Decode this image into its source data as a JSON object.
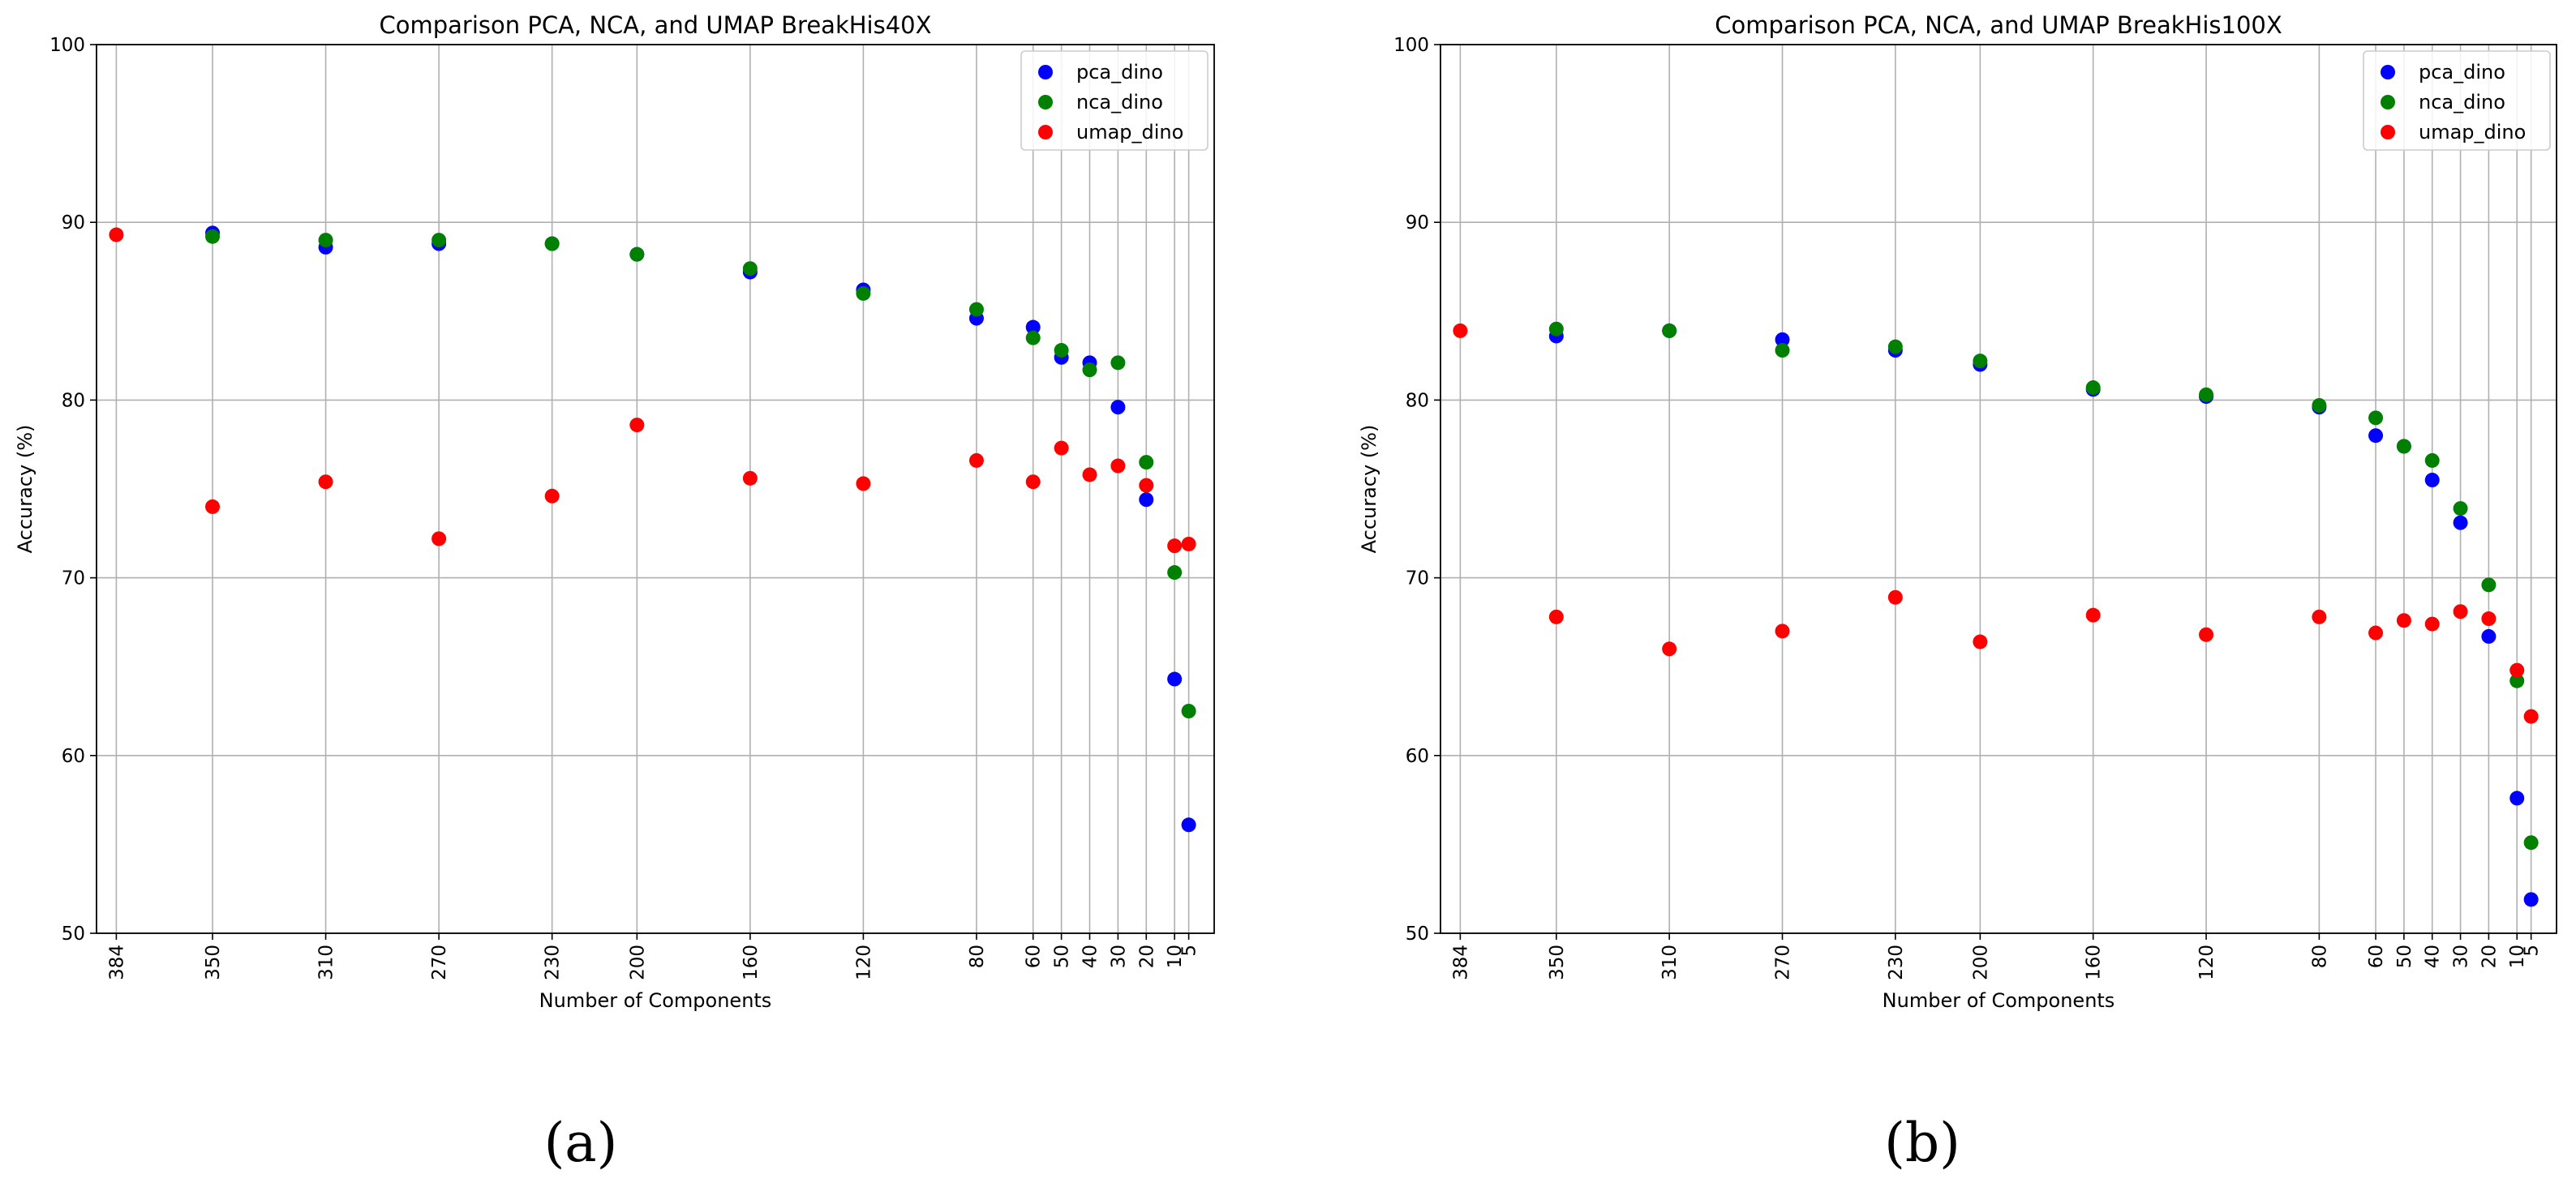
{
  "chart_data": [
    {
      "type": "scatter",
      "title": "Comparison PCA, NCA, and UMAP BreakHis40X",
      "xlabel": "Number of Components",
      "ylabel": "Accuracy (%)",
      "caption": "(a)",
      "x_order": "descending",
      "x_ticks": [
        384,
        350,
        310,
        270,
        230,
        200,
        160,
        120,
        80,
        60,
        50,
        40,
        30,
        20,
        10,
        5
      ],
      "y_ticks": [
        50,
        60,
        70,
        80,
        90,
        100
      ],
      "ylim": [
        50,
        100
      ],
      "grid": true,
      "legend_position": "upper right",
      "series": [
        {
          "name": "pca_dino",
          "color": "#0000ff",
          "points": [
            [
              350,
              89.4
            ],
            [
              310,
              88.6
            ],
            [
              270,
              88.8
            ],
            [
              230,
              88.8
            ],
            [
              200,
              88.2
            ],
            [
              160,
              87.2
            ],
            [
              120,
              86.2
            ],
            [
              80,
              84.6
            ],
            [
              60,
              84.1
            ],
            [
              50,
              82.4
            ],
            [
              40,
              82.1
            ],
            [
              30,
              79.6
            ],
            [
              20,
              74.4
            ],
            [
              10,
              64.3
            ],
            [
              5,
              56.1
            ]
          ]
        },
        {
          "name": "nca_dino",
          "color": "#008000",
          "points": [
            [
              350,
              89.2
            ],
            [
              310,
              89.0
            ],
            [
              270,
              89.0
            ],
            [
              230,
              88.8
            ],
            [
              200,
              88.2
            ],
            [
              160,
              87.4
            ],
            [
              120,
              86.0
            ],
            [
              80,
              85.1
            ],
            [
              60,
              83.5
            ],
            [
              50,
              82.8
            ],
            [
              40,
              81.7
            ],
            [
              30,
              82.1
            ],
            [
              20,
              76.5
            ],
            [
              10,
              70.3
            ],
            [
              5,
              62.5
            ]
          ]
        },
        {
          "name": "umap_dino",
          "color": "#ff0000",
          "points": [
            [
              384,
              89.3
            ],
            [
              350,
              74.0
            ],
            [
              310,
              75.4
            ],
            [
              270,
              72.2
            ],
            [
              230,
              74.6
            ],
            [
              200,
              78.6
            ],
            [
              160,
              75.6
            ],
            [
              120,
              75.3
            ],
            [
              80,
              76.6
            ],
            [
              60,
              75.4
            ],
            [
              50,
              77.3
            ],
            [
              40,
              75.8
            ],
            [
              30,
              76.3
            ],
            [
              20,
              75.2
            ],
            [
              10,
              71.8
            ],
            [
              5,
              71.9
            ]
          ]
        }
      ]
    },
    {
      "type": "scatter",
      "title": "Comparison PCA, NCA, and UMAP BreakHis100X",
      "xlabel": "Number of Components",
      "ylabel": "Accuracy (%)",
      "caption": "(b)",
      "x_order": "descending",
      "x_ticks": [
        384,
        350,
        310,
        270,
        230,
        200,
        160,
        120,
        80,
        60,
        50,
        40,
        30,
        20,
        10,
        5
      ],
      "y_ticks": [
        50,
        60,
        70,
        80,
        90,
        100
      ],
      "ylim": [
        50,
        100
      ],
      "grid": true,
      "legend_position": "upper right",
      "series": [
        {
          "name": "pca_dino",
          "color": "#0000ff",
          "points": [
            [
              350,
              83.6
            ],
            [
              310,
              83.9
            ],
            [
              270,
              83.4
            ],
            [
              230,
              82.8
            ],
            [
              200,
              82.0
            ],
            [
              160,
              80.6
            ],
            [
              120,
              80.2
            ],
            [
              80,
              79.6
            ],
            [
              60,
              78.0
            ],
            [
              50,
              77.4
            ],
            [
              40,
              75.5
            ],
            [
              30,
              73.1
            ],
            [
              20,
              66.7
            ],
            [
              10,
              57.6
            ],
            [
              5,
              51.9
            ]
          ]
        },
        {
          "name": "nca_dino",
          "color": "#008000",
          "points": [
            [
              350,
              84.0
            ],
            [
              310,
              83.9
            ],
            [
              270,
              82.8
            ],
            [
              230,
              83.0
            ],
            [
              200,
              82.2
            ],
            [
              160,
              80.7
            ],
            [
              120,
              80.3
            ],
            [
              80,
              79.7
            ],
            [
              60,
              79.0
            ],
            [
              50,
              77.4
            ],
            [
              40,
              76.6
            ],
            [
              30,
              73.9
            ],
            [
              20,
              69.6
            ],
            [
              10,
              64.2
            ],
            [
              5,
              55.1
            ]
          ]
        },
        {
          "name": "umap_dino",
          "color": "#ff0000",
          "points": [
            [
              384,
              83.9
            ],
            [
              350,
              67.8
            ],
            [
              310,
              66.0
            ],
            [
              270,
              67.0
            ],
            [
              230,
              68.9
            ],
            [
              200,
              66.4
            ],
            [
              160,
              67.9
            ],
            [
              120,
              66.8
            ],
            [
              80,
              67.8
            ],
            [
              60,
              66.9
            ],
            [
              50,
              67.6
            ],
            [
              40,
              67.4
            ],
            [
              30,
              68.1
            ],
            [
              20,
              67.7
            ],
            [
              10,
              64.8
            ],
            [
              5,
              62.2
            ]
          ]
        }
      ]
    }
  ]
}
